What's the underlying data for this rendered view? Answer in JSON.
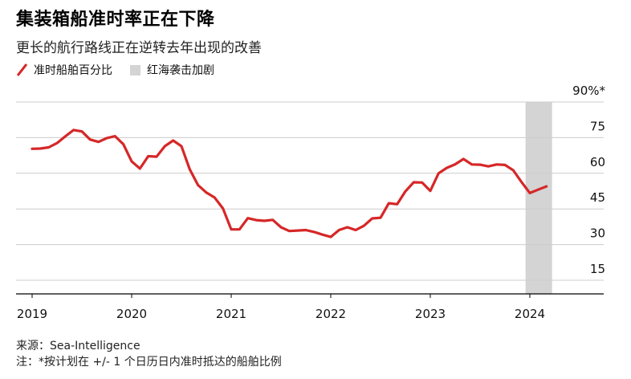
{
  "title": "集装箱船准时率正在下降",
  "subtitle": "更长的航行路线正在逆转去年出现的改善",
  "legend": {
    "series_label": "准时船舶百分比",
    "shade_label": "红海袭击加剧"
  },
  "source": "来源：Sea-Intelligence",
  "note": "注：*按计划在 +/- 1 个日历日内准时抵达的船舶比例",
  "colors": {
    "series": "#d62728",
    "shade": "#d4d4d4",
    "grid": "#cccccc",
    "axis": "#000000"
  },
  "chart_data": {
    "type": "line",
    "title": "集装箱船准时率正在下降",
    "subtitle": "更长的航行路线正在逆转去年出现的改善",
    "xlabel": "",
    "ylabel": "",
    "x_ticks": [
      "2019",
      "2020",
      "2021",
      "2022",
      "2023",
      "2024"
    ],
    "y_ticks": [
      15,
      30,
      45,
      60,
      75,
      90
    ],
    "y_tick_labels": [
      "15",
      "30",
      "45",
      "60",
      "75",
      "90%*"
    ],
    "ylim": [
      10,
      90
    ],
    "y_axis_side": "right",
    "grid": true,
    "legend_position": "top-left",
    "shaded_region": {
      "label": "红海袭击加剧",
      "x_start": "2023-12",
      "x_end": "2024-03"
    },
    "series": [
      {
        "name": "准时船舶百分比",
        "x": [
          "2019-01",
          "2019-02",
          "2019-03",
          "2019-04",
          "2019-05",
          "2019-06",
          "2019-07",
          "2019-08",
          "2019-09",
          "2019-10",
          "2019-11",
          "2019-12",
          "2020-01",
          "2020-02",
          "2020-03",
          "2020-04",
          "2020-05",
          "2020-06",
          "2020-07",
          "2020-08",
          "2020-09",
          "2020-10",
          "2020-11",
          "2020-12",
          "2021-01",
          "2021-02",
          "2021-03",
          "2021-04",
          "2021-05",
          "2021-06",
          "2021-07",
          "2021-08",
          "2021-09",
          "2021-10",
          "2021-11",
          "2021-12",
          "2022-01",
          "2022-02",
          "2022-03",
          "2022-04",
          "2022-05",
          "2022-06",
          "2022-07",
          "2022-08",
          "2022-09",
          "2022-10",
          "2022-11",
          "2022-12",
          "2023-01",
          "2023-02",
          "2023-03",
          "2023-04",
          "2023-05",
          "2023-06",
          "2023-07",
          "2023-08",
          "2023-09",
          "2023-10",
          "2023-11",
          "2023-12",
          "2024-01",
          "2024-02",
          "2024-03"
        ],
        "values": [
          70.3,
          70.4,
          70.9,
          72.7,
          75.5,
          78.2,
          77.6,
          74.2,
          73.2,
          74.8,
          75.6,
          72.2,
          65.0,
          62.0,
          67.2,
          67.0,
          71.4,
          73.8,
          71.4,
          61.7,
          55.0,
          51.9,
          49.8,
          45.2,
          36.4,
          36.4,
          41.1,
          40.3,
          40.0,
          40.4,
          37.3,
          35.7,
          35.9,
          36.1,
          35.3,
          34.2,
          33.2,
          36.1,
          37.3,
          36.1,
          37.9,
          41.0,
          41.3,
          47.4,
          47.0,
          52.4,
          56.2,
          56.1,
          52.6,
          60.0,
          62.3,
          63.8,
          66.0,
          63.7,
          63.6,
          62.9,
          63.7,
          63.5,
          61.3,
          56.3,
          51.7,
          53.1,
          54.5
        ]
      }
    ]
  }
}
